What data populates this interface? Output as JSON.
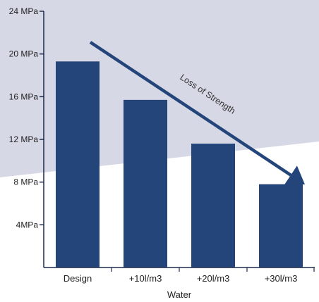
{
  "colors": {
    "bar": "#23457a",
    "arrow": "#23457a",
    "shade": "#d7d8e6",
    "axis": "#1c2b4a",
    "background": "#ffffff"
  },
  "chart_data": {
    "type": "bar",
    "categories": [
      "Design",
      "+10l/m3",
      "+20l/m3",
      "+30l/m3"
    ],
    "values": [
      19.3,
      15.7,
      11.6,
      7.8
    ],
    "ylim": [
      0,
      24
    ],
    "yticks": [
      {
        "value": 4,
        "label": "4MPa"
      },
      {
        "value": 8,
        "label": "8 MPa"
      },
      {
        "value": 12,
        "label": "12 MPa"
      },
      {
        "value": 16,
        "label": "16 MPa"
      },
      {
        "value": 20,
        "label": "20 MPa"
      },
      {
        "value": 24,
        "label": "24 MPa"
      }
    ],
    "xlabel": "Water",
    "ylabel": "",
    "title": "",
    "grid": false,
    "annotation": {
      "text": "Loss of Strength",
      "style": "diagonal arrow from top-left to lower-right"
    }
  }
}
